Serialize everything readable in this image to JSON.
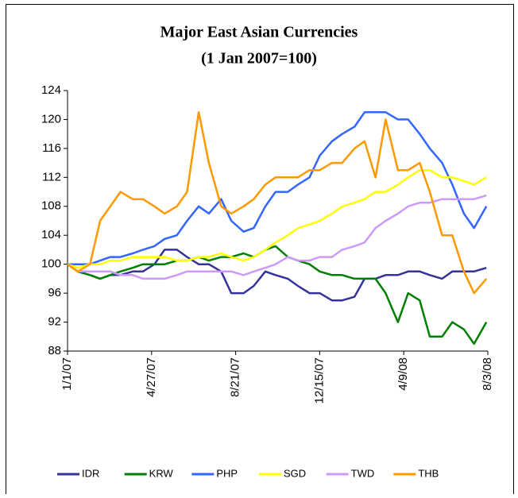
{
  "chart_data": {
    "type": "line",
    "title": "Major East Asian Currencies",
    "subtitle": "(1 Jan 2007=100)",
    "x": [
      "1/1/07",
      "1/15/07",
      "2/1/07",
      "2/15/07",
      "3/1/07",
      "3/15/07",
      "4/1/07",
      "4/15/07",
      "5/1/07",
      "5/15/07",
      "6/1/07",
      "6/15/07",
      "7/1/07",
      "7/15/07",
      "8/1/07",
      "8/15/07",
      "9/1/07",
      "9/15/07",
      "10/1/07",
      "10/15/07",
      "11/1/07",
      "11/15/07",
      "12/1/07",
      "12/15/07",
      "1/1/08",
      "1/15/08",
      "2/1/08",
      "2/15/08",
      "3/1/08",
      "3/15/08",
      "4/1/08",
      "4/15/08",
      "5/1/08",
      "5/15/08",
      "6/1/08",
      "6/15/08",
      "7/1/08",
      "7/15/08",
      "8/1/08"
    ],
    "series": [
      {
        "name": "IDR",
        "color": "#333399",
        "values": [
          100,
          99,
          98.5,
          98,
          98.5,
          98.5,
          99,
          99,
          100,
          102,
          102,
          101,
          100,
          100,
          99,
          96,
          96,
          97,
          99,
          98.5,
          98,
          97,
          96,
          96,
          95,
          95,
          95.5,
          98,
          98,
          98.5,
          98.5,
          99,
          99,
          98.5,
          98,
          99,
          99,
          99,
          99.5
        ]
      },
      {
        "name": "KRW",
        "color": "#008000",
        "values": [
          100,
          99,
          98.5,
          98,
          98.5,
          99,
          99.5,
          100,
          100,
          100,
          100.5,
          100.5,
          101,
          100.5,
          101,
          101,
          101.5,
          101,
          102,
          102.5,
          101,
          100.5,
          100,
          99,
          98.5,
          98.5,
          98,
          98,
          98,
          96,
          92,
          96,
          95,
          90,
          90,
          92,
          91,
          89,
          92
        ]
      },
      {
        "name": "PHP",
        "color": "#3366ff",
        "values": [
          100,
          100,
          100,
          100.5,
          101,
          101,
          101.5,
          102,
          102.5,
          103.5,
          104,
          106,
          108,
          107,
          109,
          106,
          104.5,
          105,
          108,
          110,
          110,
          111,
          112,
          115,
          117,
          118,
          119,
          121,
          121,
          121,
          120,
          120,
          118,
          116,
          114,
          111,
          107,
          105,
          108
        ]
      },
      {
        "name": "SGD",
        "color": "#ffff00",
        "values": [
          100,
          99.5,
          100,
          100,
          100.5,
          100.5,
          101,
          101,
          101,
          101,
          100.5,
          100.5,
          101,
          101,
          101.5,
          101,
          100.5,
          101,
          102,
          103,
          104,
          105,
          105.5,
          106,
          107,
          108,
          108.5,
          109,
          110,
          110,
          111,
          112,
          113,
          113,
          112,
          112,
          111.5,
          111,
          112
        ]
      },
      {
        "name": "TWD",
        "color": "#cc99ff",
        "values": [
          100,
          99,
          99,
          99,
          99,
          98.5,
          98.5,
          98,
          98,
          98,
          98.5,
          99,
          99,
          99,
          99,
          99,
          98.5,
          99,
          99.5,
          100,
          101,
          100.5,
          100.5,
          101,
          101,
          102,
          102.5,
          103,
          105,
          106,
          107,
          108,
          108.5,
          108.5,
          109,
          109,
          109,
          109,
          109.5
        ]
      },
      {
        "name": "THB",
        "color": "#ff9900",
        "values": [
          100,
          99,
          100,
          106,
          108,
          110,
          109,
          109,
          108,
          107,
          108,
          110,
          121,
          114,
          108,
          107,
          108,
          109,
          111,
          112,
          112,
          112,
          113,
          113,
          114,
          114,
          116,
          117,
          112,
          120,
          113,
          113,
          114,
          110,
          104,
          104,
          99,
          96,
          98
        ]
      }
    ],
    "xlim": [
      "1/1/07",
      "8/3/08"
    ],
    "xticks": [
      "1/1/07",
      "4/27/07",
      "8/21/07",
      "12/15/07",
      "4/9/08",
      "8/3/08"
    ],
    "ylim": [
      88,
      124
    ],
    "yticks": [
      88,
      92,
      96,
      100,
      104,
      108,
      112,
      116,
      120,
      124
    ],
    "legend": "bottom"
  }
}
